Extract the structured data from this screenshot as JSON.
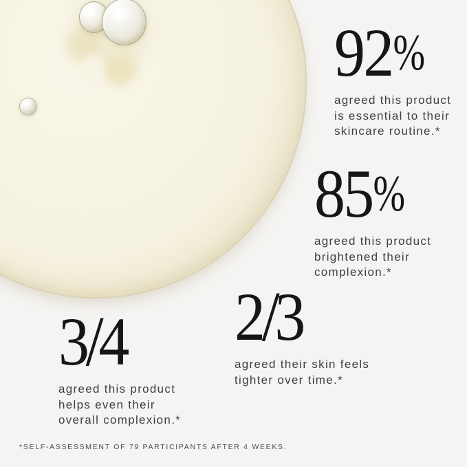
{
  "image": {
    "kind": "skincare-claims-infographic",
    "background_color": "#f5f4f2",
    "swatch_fill_color": "#f6f2e1",
    "swatch_rim_color": "#d9d2b8",
    "bubble_ring_color": "#767142",
    "number_color": "#161616",
    "caption_color": "#3f3f3f",
    "footnote_color": "#4a4a4a"
  },
  "stats": [
    {
      "value": "92",
      "unit": "%",
      "lines": [
        "agreed this product",
        "is essential to their",
        "skincare routine.*"
      ]
    },
    {
      "value": "85",
      "unit": "%",
      "lines": [
        "agreed this product",
        "brightened their",
        "complexion.*"
      ]
    },
    {
      "numerator": "2",
      "denominator": "3",
      "lines": [
        "agreed their skin feels",
        "tighter over time.*"
      ]
    },
    {
      "numerator": "3",
      "denominator": "4",
      "lines": [
        "agreed this product",
        "helps even their",
        "overall complexion.*"
      ]
    }
  ],
  "footnote": "*SELF-ASSESSMENT OF 79 PARTICIPANTS AFTER 4 WEEKS."
}
